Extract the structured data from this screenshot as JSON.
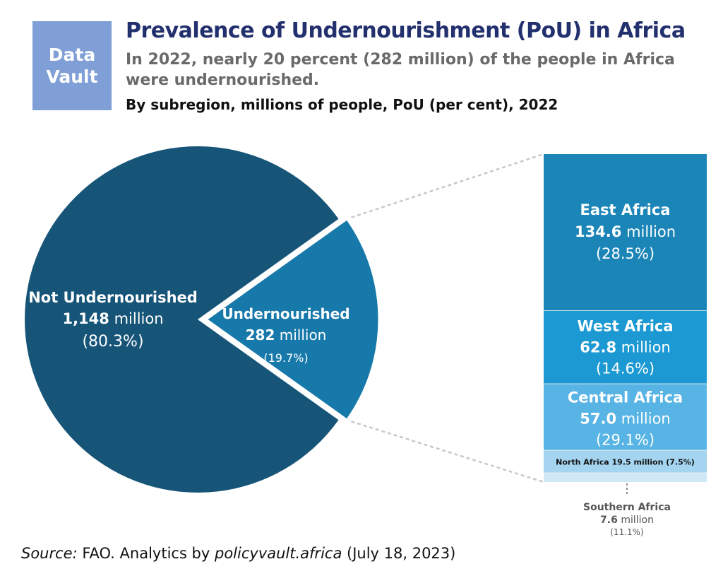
{
  "logo": {
    "line1": "Data",
    "line2": "Vault"
  },
  "title": "Prevalence of Undernourishment (PoU) in Africa",
  "subtitle": "In 2022, nearly 20 percent (282 million) of the people in Africa were undernourished.",
  "subtitle2": "By subregion, millions of people, PoU (per cent), 2022",
  "colors": {
    "not_undernourished": "#165478",
    "undernourished": "#1779aa",
    "east_africa": "#1b85b8",
    "west_africa": "#1c99d2",
    "central_africa": "#57b4e4",
    "north_africa": "#a4d4ef",
    "southern_africa": "#cfe8f6"
  },
  "chart_data": [
    {
      "type": "pie",
      "slices": [
        {
          "key": "not",
          "name": "Not Undernourished",
          "value": 1148,
          "value_text": "1,148",
          "unit_text": "million",
          "percent": 80.3,
          "percent_text": "(80.3%)"
        },
        {
          "key": "under",
          "name": "Undernourished",
          "value": 282,
          "value_text": "282",
          "unit_text": "million",
          "percent": 19.7,
          "percent_text": "(19.7%)"
        }
      ]
    },
    {
      "type": "bar",
      "stacked": true,
      "segments": [
        {
          "key": "east",
          "name": "East Africa",
          "value": 134.6,
          "value_text": "134.6",
          "unit_text": "million",
          "pou_text": "(28.5%)"
        },
        {
          "key": "west",
          "name": "West Africa",
          "value": 62.8,
          "value_text": "62.8",
          "unit_text": "million",
          "pou_text": "(14.6%)"
        },
        {
          "key": "central",
          "name": "Central Africa",
          "value": 57.0,
          "value_text": "57.0",
          "unit_text": "million",
          "pou_text": "(29.1%)"
        },
        {
          "key": "north",
          "name": "North Africa",
          "value": 19.5,
          "label_text": "North Africa 19.5 million (7.5%)"
        },
        {
          "key": "southern",
          "name": "Southern Africa",
          "value": 7.6,
          "value_text": "7.6",
          "unit_text": "million",
          "pou_text": "(11.1%)"
        }
      ]
    }
  ],
  "source": {
    "label": "Source:",
    "text1": " FAO. Analytics by ",
    "site": "policyvault.africa",
    "text2": " (July 18, 2023)"
  }
}
